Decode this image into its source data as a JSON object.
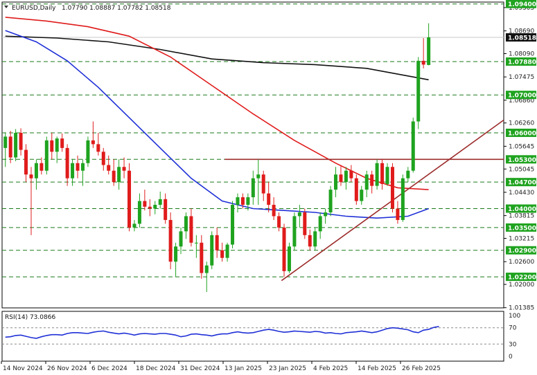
{
  "header": {
    "symbol": "EURUSD,Daily",
    "ohlc": "1.07790 1.08887 1.07782 1.08518"
  },
  "rsi_header": {
    "label": "RSI(14) 73.0866"
  },
  "colors": {
    "bull": "#1fa31f",
    "bear": "#e01b1b",
    "tag_bg": "#1fa31f",
    "ma_red": "#e01b1b",
    "ma_black": "#111111",
    "ma_blue": "#1e2fd6",
    "trend": "#9c2b2b",
    "grid_dash": "#1a7a1a",
    "rsi_line": "#1e2fd6"
  },
  "chart_data": [
    {
      "type": "candlestick",
      "title": "EURUSD,Daily",
      "ylim": [
        1.0138,
        1.0945
      ],
      "x_labels": [
        "14 Nov 2024",
        "26 Nov 2024",
        "6 Dec 2024",
        "18 Dec 2024",
        "31 Dec 2024",
        "13 Jan 2025",
        "23 Jan 2025",
        "4 Feb 2025",
        "14 Feb 2025",
        "26 Feb 2025"
      ],
      "y_ticks": [
        "1.09305",
        "1.08690",
        "1.08090",
        "1.07475",
        "1.06860",
        "1.06260",
        "1.05645",
        "1.05045",
        "1.04430",
        "1.03815",
        "1.03215",
        "1.02600",
        "1.02000",
        "1.01385"
      ],
      "price_tags": [
        "1.09400",
        "1.07880",
        "1.07000",
        "1.06000",
        "1.05300",
        "1.04700",
        "1.04000",
        "1.03500",
        "1.02900",
        "1.02200"
      ],
      "current_price": "1.08518",
      "candles": [
        {
          "o": 1.056,
          "h": 1.06,
          "l": 1.051,
          "c": 1.059
        },
        {
          "o": 1.059,
          "h": 1.0605,
          "l": 1.052,
          "c": 1.0535
        },
        {
          "o": 1.0535,
          "h": 1.061,
          "l": 1.0525,
          "c": 1.06
        },
        {
          "o": 1.06,
          "h": 1.0612,
          "l": 1.054,
          "c": 1.0555
        },
        {
          "o": 1.0555,
          "h": 1.057,
          "l": 1.047,
          "c": 1.049
        },
        {
          "o": 1.049,
          "h": 1.051,
          "l": 1.033,
          "c": 1.048
        },
        {
          "o": 1.048,
          "h": 1.053,
          "l": 1.045,
          "c": 1.052
        },
        {
          "o": 1.052,
          "h": 1.0535,
          "l": 1.049,
          "c": 1.05
        },
        {
          "o": 1.05,
          "h": 1.059,
          "l": 1.049,
          "c": 1.058
        },
        {
          "o": 1.058,
          "h": 1.06,
          "l": 1.053,
          "c": 1.055
        },
        {
          "o": 1.055,
          "h": 1.059,
          "l": 1.052,
          "c": 1.0585
        },
        {
          "o": 1.0585,
          "h": 1.0598,
          "l": 1.055,
          "c": 1.056
        },
        {
          "o": 1.056,
          "h": 1.057,
          "l": 1.046,
          "c": 1.048
        },
        {
          "o": 1.048,
          "h": 1.053,
          "l": 1.046,
          "c": 1.052
        },
        {
          "o": 1.052,
          "h": 1.054,
          "l": 1.048,
          "c": 1.05
        },
        {
          "o": 1.05,
          "h": 1.053,
          "l": 1.046,
          "c": 1.052
        },
        {
          "o": 1.052,
          "h": 1.059,
          "l": 1.051,
          "c": 1.058
        },
        {
          "o": 1.058,
          "h": 1.063,
          "l": 1.056,
          "c": 1.057
        },
        {
          "o": 1.057,
          "h": 1.06,
          "l": 1.054,
          "c": 1.055
        },
        {
          "o": 1.055,
          "h": 1.056,
          "l": 1.05,
          "c": 1.0515
        },
        {
          "o": 1.0515,
          "h": 1.054,
          "l": 1.049,
          "c": 1.05
        },
        {
          "o": 1.05,
          "h": 1.053,
          "l": 1.046,
          "c": 1.047
        },
        {
          "o": 1.047,
          "h": 1.053,
          "l": 1.045,
          "c": 1.051
        },
        {
          "o": 1.051,
          "h": 1.0535,
          "l": 1.048,
          "c": 1.05
        },
        {
          "o": 1.05,
          "h": 1.052,
          "l": 1.034,
          "c": 1.035
        },
        {
          "o": 1.035,
          "h": 1.037,
          "l": 1.034,
          "c": 1.036
        },
        {
          "o": 1.036,
          "h": 1.044,
          "l": 1.035,
          "c": 1.042
        },
        {
          "o": 1.042,
          "h": 1.045,
          "l": 1.0395,
          "c": 1.0405
        },
        {
          "o": 1.0405,
          "h": 1.0425,
          "l": 1.038,
          "c": 1.04
        },
        {
          "o": 1.04,
          "h": 1.042,
          "l": 1.0385,
          "c": 1.041
        },
        {
          "o": 1.041,
          "h": 1.0445,
          "l": 1.04,
          "c": 1.0425
        },
        {
          "o": 1.0425,
          "h": 1.044,
          "l": 1.036,
          "c": 1.037
        },
        {
          "o": 1.037,
          "h": 1.039,
          "l": 1.024,
          "c": 1.026
        },
        {
          "o": 1.026,
          "h": 1.031,
          "l": 1.022,
          "c": 1.03
        },
        {
          "o": 1.03,
          "h": 1.035,
          "l": 1.028,
          "c": 1.034
        },
        {
          "o": 1.034,
          "h": 1.039,
          "l": 1.032,
          "c": 1.038
        },
        {
          "o": 1.038,
          "h": 1.04,
          "l": 1.03,
          "c": 1.031
        },
        {
          "o": 1.031,
          "h": 1.033,
          "l": 1.027,
          "c": 1.031
        },
        {
          "o": 1.031,
          "h": 1.033,
          "l": 1.0215,
          "c": 1.023
        },
        {
          "o": 1.023,
          "h": 1.026,
          "l": 1.018,
          "c": 1.025
        },
        {
          "o": 1.025,
          "h": 1.034,
          "l": 1.024,
          "c": 1.033
        },
        {
          "o": 1.033,
          "h": 1.035,
          "l": 1.027,
          "c": 1.029
        },
        {
          "o": 1.029,
          "h": 1.031,
          "l": 1.026,
          "c": 1.027
        },
        {
          "o": 1.027,
          "h": 1.031,
          "l": 1.026,
          "c": 1.0305
        },
        {
          "o": 1.0305,
          "h": 1.042,
          "l": 1.0295,
          "c": 1.041
        },
        {
          "o": 1.041,
          "h": 1.044,
          "l": 1.039,
          "c": 1.043
        },
        {
          "o": 1.043,
          "h": 1.044,
          "l": 1.04,
          "c": 1.041
        },
        {
          "o": 1.041,
          "h": 1.044,
          "l": 1.0395,
          "c": 1.043
        },
        {
          "o": 1.043,
          "h": 1.05,
          "l": 1.041,
          "c": 1.048
        },
        {
          "o": 1.048,
          "h": 1.053,
          "l": 1.041,
          "c": 1.049
        },
        {
          "o": 1.049,
          "h": 1.05,
          "l": 1.042,
          "c": 1.044
        },
        {
          "o": 1.044,
          "h": 1.047,
          "l": 1.039,
          "c": 1.041
        },
        {
          "o": 1.041,
          "h": 1.043,
          "l": 1.037,
          "c": 1.038
        },
        {
          "o": 1.038,
          "h": 1.039,
          "l": 1.034,
          "c": 1.035
        },
        {
          "o": 1.035,
          "h": 1.036,
          "l": 1.022,
          "c": 1.0235
        },
        {
          "o": 1.0235,
          "h": 1.031,
          "l": 1.023,
          "c": 1.03
        },
        {
          "o": 1.03,
          "h": 1.039,
          "l": 1.029,
          "c": 1.038
        },
        {
          "o": 1.038,
          "h": 1.041,
          "l": 1.035,
          "c": 1.039
        },
        {
          "o": 1.039,
          "h": 1.04,
          "l": 1.032,
          "c": 1.033
        },
        {
          "o": 1.033,
          "h": 1.0345,
          "l": 1.029,
          "c": 1.03
        },
        {
          "o": 1.03,
          "h": 1.035,
          "l": 1.029,
          "c": 1.034
        },
        {
          "o": 1.034,
          "h": 1.039,
          "l": 1.032,
          "c": 1.038
        },
        {
          "o": 1.038,
          "h": 1.04,
          "l": 1.036,
          "c": 1.039
        },
        {
          "o": 1.039,
          "h": 1.046,
          "l": 1.038,
          "c": 1.045
        },
        {
          "o": 1.045,
          "h": 1.051,
          "l": 1.043,
          "c": 1.049
        },
        {
          "o": 1.049,
          "h": 1.0515,
          "l": 1.046,
          "c": 1.047
        },
        {
          "o": 1.047,
          "h": 1.051,
          "l": 1.045,
          "c": 1.05
        },
        {
          "o": 1.05,
          "h": 1.0515,
          "l": 1.047,
          "c": 1.048
        },
        {
          "o": 1.048,
          "h": 1.049,
          "l": 1.041,
          "c": 1.042
        },
        {
          "o": 1.042,
          "h": 1.046,
          "l": 1.041,
          "c": 1.045
        },
        {
          "o": 1.045,
          "h": 1.05,
          "l": 1.043,
          "c": 1.049
        },
        {
          "o": 1.049,
          "h": 1.05,
          "l": 1.044,
          "c": 1.046
        },
        {
          "o": 1.046,
          "h": 1.053,
          "l": 1.045,
          "c": 1.052
        },
        {
          "o": 1.052,
          "h": 1.053,
          "l": 1.045,
          "c": 1.0465
        },
        {
          "o": 1.0465,
          "h": 1.052,
          "l": 1.046,
          "c": 1.051
        },
        {
          "o": 1.051,
          "h": 1.052,
          "l": 1.039,
          "c": 1.04
        },
        {
          "o": 1.04,
          "h": 1.042,
          "l": 1.036,
          "c": 1.037
        },
        {
          "o": 1.037,
          "h": 1.049,
          "l": 1.0365,
          "c": 1.048
        },
        {
          "o": 1.048,
          "h": 1.051,
          "l": 1.047,
          "c": 1.05
        },
        {
          "o": 1.05,
          "h": 1.064,
          "l": 1.0495,
          "c": 1.063
        },
        {
          "o": 1.063,
          "h": 1.08,
          "l": 1.061,
          "c": 1.079
        },
        {
          "o": 1.079,
          "h": 1.085,
          "l": 1.077,
          "c": 1.078
        },
        {
          "o": 1.0779,
          "h": 1.0889,
          "l": 1.0778,
          "c": 1.0852
        }
      ],
      "ma_red_points": [
        [
          0,
          1.0905
        ],
        [
          8,
          1.0895
        ],
        [
          16,
          1.088
        ],
        [
          24,
          1.0855
        ],
        [
          32,
          1.08
        ],
        [
          40,
          1.0725
        ],
        [
          48,
          1.065
        ],
        [
          56,
          1.058
        ],
        [
          64,
          1.052
        ],
        [
          70,
          1.048
        ],
        [
          76,
          1.0455
        ],
        [
          82,
          1.045
        ]
      ],
      "ma_black_points": [
        [
          0,
          1.0855
        ],
        [
          10,
          1.085
        ],
        [
          20,
          1.084
        ],
        [
          30,
          1.082
        ],
        [
          40,
          1.0795
        ],
        [
          50,
          1.0785
        ],
        [
          60,
          1.078
        ],
        [
          70,
          1.077
        ],
        [
          82,
          1.074
        ]
      ],
      "ma_blue_points": [
        [
          0,
          1.087
        ],
        [
          6,
          1.084
        ],
        [
          12,
          1.079
        ],
        [
          18,
          1.072
        ],
        [
          24,
          1.064
        ],
        [
          30,
          1.056
        ],
        [
          36,
          1.048
        ],
        [
          42,
          1.042
        ],
        [
          48,
          1.04
        ],
        [
          54,
          1.0395
        ],
        [
          60,
          1.039
        ],
        [
          66,
          1.038
        ],
        [
          72,
          1.0375
        ],
        [
          78,
          1.038
        ],
        [
          82,
          1.04
        ]
      ],
      "resistance": {
        "from": 42.5,
        "to": 85,
        "value": 1.053
      },
      "trend_from": [
        53.5,
        1.021
      ],
      "trend_to": [
        85,
        1.052
      ]
    },
    {
      "type": "line",
      "title": "RSI(14) 73.0866",
      "ylim": [
        0,
        100
      ],
      "y_ticks": [
        "100",
        "70",
        "30",
        "0"
      ],
      "y_tick_values": [
        100,
        70,
        30,
        0
      ],
      "levels": [
        70,
        30
      ],
      "values": [
        47,
        48,
        51,
        52,
        49,
        46,
        44,
        48,
        51,
        53,
        53,
        52,
        56,
        58,
        58,
        57,
        56,
        59,
        61,
        62,
        59,
        57,
        55,
        57,
        55,
        52,
        55,
        56,
        55,
        54,
        56,
        56,
        54,
        52,
        48,
        50,
        54,
        55,
        53,
        52,
        50,
        53,
        55,
        55,
        58,
        60,
        58,
        57,
        58,
        61,
        64,
        66,
        64,
        61,
        59,
        60,
        62,
        61,
        60,
        59,
        61,
        60,
        57,
        58,
        56,
        55,
        58,
        59,
        60,
        62,
        60,
        58,
        60,
        64,
        68,
        70,
        69,
        67,
        65,
        60,
        58,
        64,
        66,
        71,
        73
      ]
    }
  ]
}
